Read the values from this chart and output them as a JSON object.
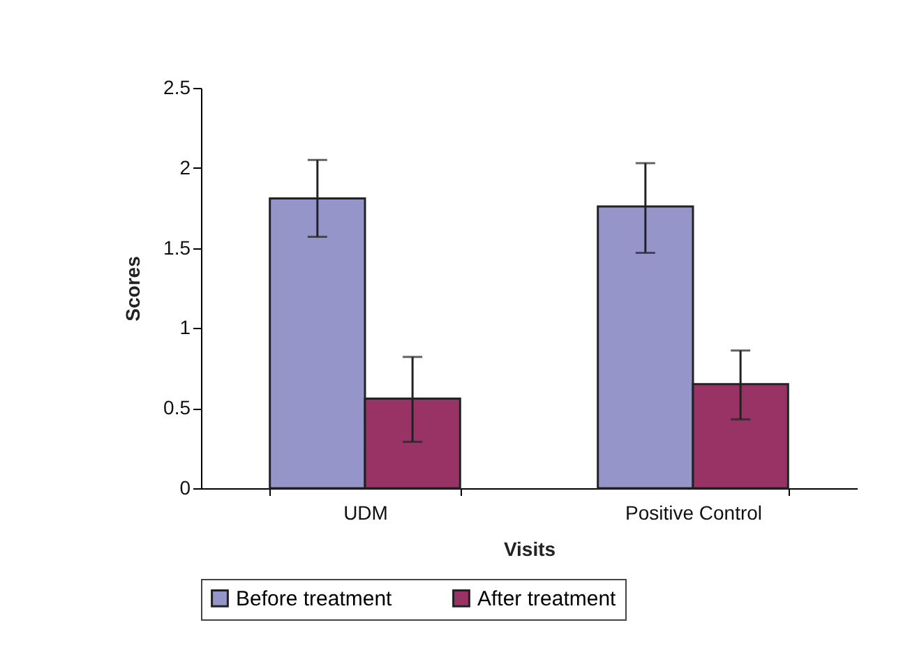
{
  "chart_data": {
    "type": "bar",
    "xlabel": "Visits",
    "ylabel": "Scores",
    "categories": [
      "UDM",
      "Positive Control"
    ],
    "series": [
      {
        "name": "Before treatment",
        "color": "#9595c9",
        "values": [
          1.81,
          1.76
        ],
        "errors": [
          [
            1.57,
            2.05
          ],
          [
            1.47,
            2.03
          ]
        ]
      },
      {
        "name": "After treatment",
        "color": "#993366",
        "values": [
          0.56,
          0.65
        ],
        "errors": [
          [
            0.29,
            0.82
          ],
          [
            0.43,
            0.86
          ]
        ]
      }
    ],
    "ylim": [
      0,
      2.5
    ],
    "yticks": [
      0,
      0.5,
      1,
      1.5,
      2,
      2.5
    ],
    "grid": false,
    "legend": "bottom"
  }
}
